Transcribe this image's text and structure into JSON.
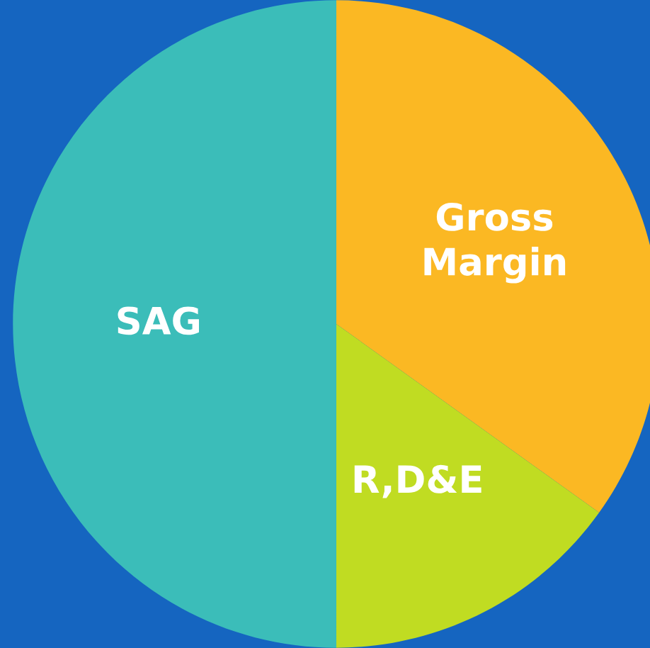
{
  "chart_data": {
    "type": "pie",
    "categories": [
      "Gross\nMargin",
      "R,D&E",
      "SAG"
    ],
    "values": [
      34.9,
      15.1,
      50
    ],
    "colors": [
      "#fbb823",
      "#c0dc22",
      "#3bbdb9"
    ],
    "legend": false
  }
}
